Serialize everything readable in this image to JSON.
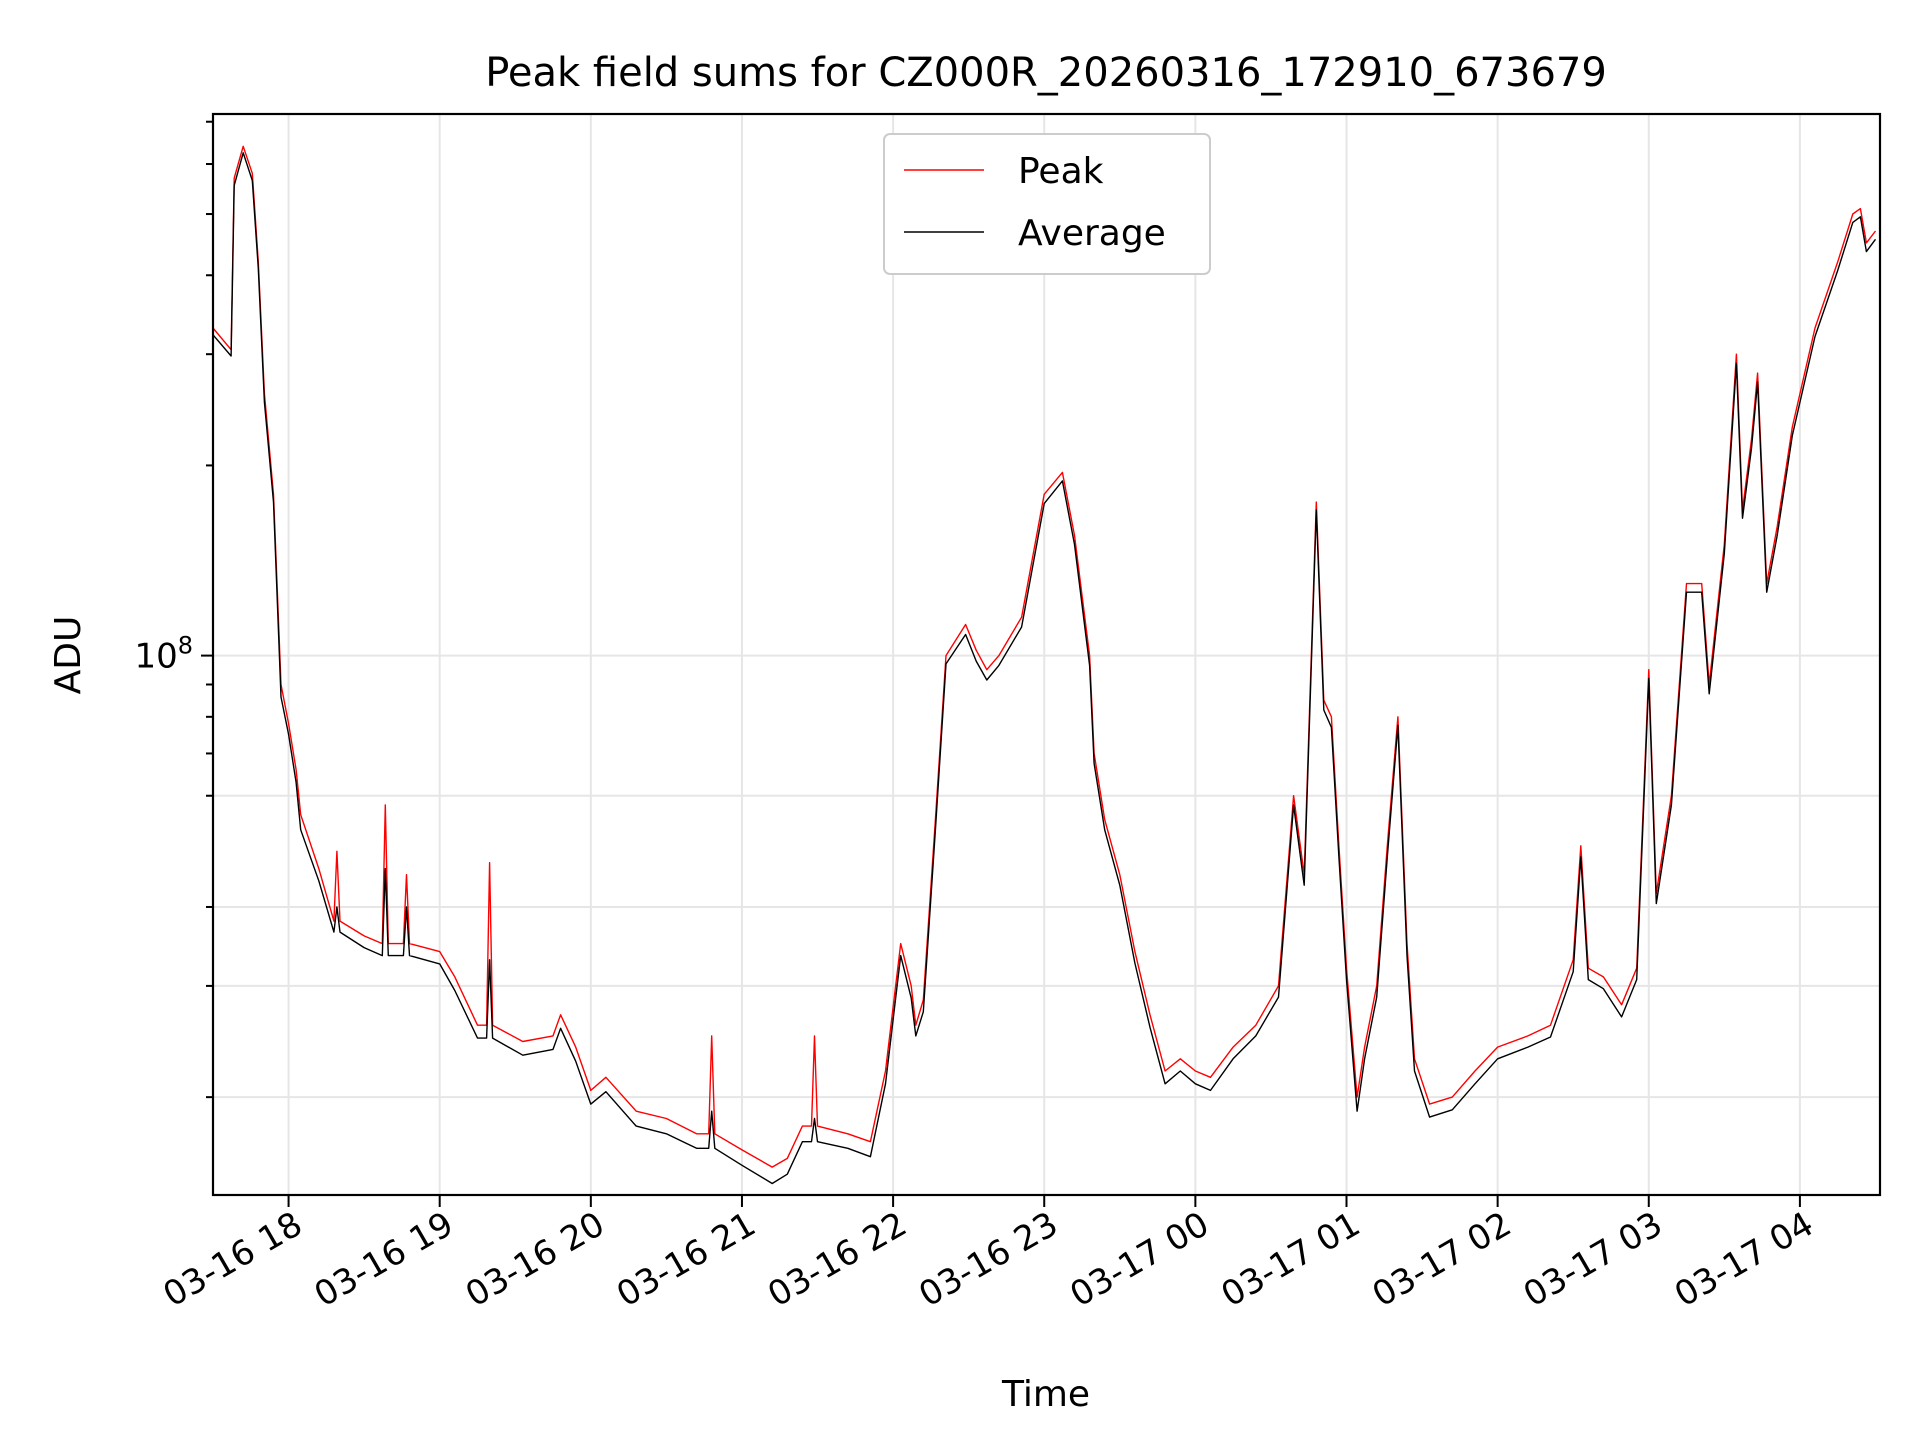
{
  "chart_data": {
    "type": "line",
    "title": "Peak field sums for CZ000R_20260316_172910_673679",
    "xlabel": "Time",
    "ylabel": "ADU",
    "yscale": "log",
    "ylim": [
      14000000,
      720000000
    ],
    "xlim_hours": [
      17.5,
      28.53
    ],
    "x_ticks": [
      {
        "hour": 18,
        "label": "03-16 18"
      },
      {
        "hour": 19,
        "label": "03-16 19"
      },
      {
        "hour": 20,
        "label": "03-16 20"
      },
      {
        "hour": 21,
        "label": "03-16 21"
      },
      {
        "hour": 22,
        "label": "03-16 22"
      },
      {
        "hour": 23,
        "label": "03-16 23"
      },
      {
        "hour": 24,
        "label": "03-17 00"
      },
      {
        "hour": 25,
        "label": "03-17 01"
      },
      {
        "hour": 26,
        "label": "03-17 02"
      },
      {
        "hour": 27,
        "label": "03-17 03"
      },
      {
        "hour": 28,
        "label": "03-17 04"
      }
    ],
    "y_major_ticks": [
      {
        "value": 100000000,
        "base": "10",
        "exp": "8"
      }
    ],
    "y_minor_ticks": [
      20000000,
      30000000,
      40000000,
      60000000,
      70000000,
      80000000,
      90000000,
      200000000,
      300000000,
      400000000,
      500000000,
      600000000,
      700000000
    ],
    "y_minor_grid": [
      20000000,
      30000000,
      40000000,
      60000000
    ],
    "grid": true,
    "legend": {
      "location": "upper-center",
      "entries": [
        "Peak",
        "Average"
      ]
    },
    "series": [
      {
        "name": "Peak",
        "color": "#ff0000",
        "points": [
          [
            17.5,
            330000000
          ],
          [
            17.62,
            305000000
          ],
          [
            17.64,
            570000000
          ],
          [
            17.7,
            640000000
          ],
          [
            17.76,
            580000000
          ],
          [
            17.8,
            420000000
          ],
          [
            17.84,
            260000000
          ],
          [
            17.9,
            180000000
          ],
          [
            17.95,
            90000000
          ],
          [
            18.0,
            78000000
          ],
          [
            18.05,
            66000000
          ],
          [
            18.08,
            56000000
          ],
          [
            18.2,
            46000000
          ],
          [
            18.3,
            38000000
          ],
          [
            18.32,
            49000000
          ],
          [
            18.34,
            38000000
          ],
          [
            18.5,
            36000000
          ],
          [
            18.62,
            35000000
          ],
          [
            18.64,
            58000000
          ],
          [
            18.66,
            35000000
          ],
          [
            18.76,
            35000000
          ],
          [
            18.78,
            45000000
          ],
          [
            18.8,
            35000000
          ],
          [
            19.0,
            34000000
          ],
          [
            19.1,
            31000000
          ],
          [
            19.25,
            26000000
          ],
          [
            19.31,
            26000000
          ],
          [
            19.33,
            47000000
          ],
          [
            19.35,
            26000000
          ],
          [
            19.55,
            24500000
          ],
          [
            19.75,
            25000000
          ],
          [
            19.8,
            27000000
          ],
          [
            19.9,
            24000000
          ],
          [
            20.0,
            20500000
          ],
          [
            20.1,
            21500000
          ],
          [
            20.3,
            19000000
          ],
          [
            20.5,
            18500000
          ],
          [
            20.7,
            17500000
          ],
          [
            20.78,
            17500000
          ],
          [
            20.8,
            25000000
          ],
          [
            20.82,
            17500000
          ],
          [
            21.0,
            16500000
          ],
          [
            21.2,
            15500000
          ],
          [
            21.3,
            16000000
          ],
          [
            21.4,
            18000000
          ],
          [
            21.46,
            18000000
          ],
          [
            21.48,
            25000000
          ],
          [
            21.5,
            18000000
          ],
          [
            21.7,
            17500000
          ],
          [
            21.85,
            17000000
          ],
          [
            21.95,
            22000000
          ],
          [
            22.05,
            35000000
          ],
          [
            22.12,
            30000000
          ],
          [
            22.15,
            26000000
          ],
          [
            22.2,
            28500000
          ],
          [
            22.28,
            55000000
          ],
          [
            22.35,
            100000000
          ],
          [
            22.48,
            112000000
          ],
          [
            22.55,
            102000000
          ],
          [
            22.62,
            95000000
          ],
          [
            22.7,
            100000000
          ],
          [
            22.85,
            115000000
          ],
          [
            23.0,
            180000000
          ],
          [
            23.12,
            195000000
          ],
          [
            23.2,
            155000000
          ],
          [
            23.3,
            100000000
          ],
          [
            23.33,
            70000000
          ],
          [
            23.4,
            55000000
          ],
          [
            23.5,
            45000000
          ],
          [
            23.6,
            34000000
          ],
          [
            23.7,
            27000000
          ],
          [
            23.8,
            22000000
          ],
          [
            23.9,
            23000000
          ],
          [
            24.0,
            22000000
          ],
          [
            24.1,
            21500000
          ],
          [
            24.25,
            24000000
          ],
          [
            24.4,
            26000000
          ],
          [
            24.55,
            30000000
          ],
          [
            24.65,
            60000000
          ],
          [
            24.72,
            45000000
          ],
          [
            24.8,
            175000000
          ],
          [
            24.85,
            85000000
          ],
          [
            24.9,
            80000000
          ],
          [
            24.95,
            50000000
          ],
          [
            25.0,
            32000000
          ],
          [
            25.07,
            20000000
          ],
          [
            25.12,
            24000000
          ],
          [
            25.2,
            30000000
          ],
          [
            25.27,
            50000000
          ],
          [
            25.34,
            80000000
          ],
          [
            25.4,
            35000000
          ],
          [
            25.45,
            23000000
          ],
          [
            25.55,
            19500000
          ],
          [
            25.7,
            20000000
          ],
          [
            25.85,
            22000000
          ],
          [
            26.0,
            24000000
          ],
          [
            26.2,
            25000000
          ],
          [
            26.35,
            26000000
          ],
          [
            26.5,
            33000000
          ],
          [
            26.55,
            50000000
          ],
          [
            26.6,
            32000000
          ],
          [
            26.7,
            31000000
          ],
          [
            26.82,
            28000000
          ],
          [
            26.92,
            32000000
          ],
          [
            27.0,
            95000000
          ],
          [
            27.05,
            42000000
          ],
          [
            27.15,
            60000000
          ],
          [
            27.25,
            130000000
          ],
          [
            27.35,
            130000000
          ],
          [
            27.4,
            90000000
          ],
          [
            27.5,
            150000000
          ],
          [
            27.58,
            300000000
          ],
          [
            27.62,
            170000000
          ],
          [
            27.68,
            220000000
          ],
          [
            27.72,
            280000000
          ],
          [
            27.78,
            130000000
          ],
          [
            27.85,
            160000000
          ],
          [
            27.95,
            230000000
          ],
          [
            28.1,
            330000000
          ],
          [
            28.25,
            420000000
          ],
          [
            28.35,
            500000000
          ],
          [
            28.4,
            510000000
          ],
          [
            28.44,
            450000000
          ],
          [
            28.5,
            470000000
          ]
        ]
      },
      {
        "name": "Average",
        "color": "#000000",
        "points": [
          [
            17.5,
            322000000
          ],
          [
            17.62,
            298000000
          ],
          [
            17.64,
            555000000
          ],
          [
            17.7,
            625000000
          ],
          [
            17.76,
            565000000
          ],
          [
            17.8,
            410000000
          ],
          [
            17.84,
            252000000
          ],
          [
            17.9,
            175000000
          ],
          [
            17.95,
            86000000
          ],
          [
            18.0,
            75000000
          ],
          [
            18.05,
            63000000
          ],
          [
            18.08,
            53000000
          ],
          [
            18.2,
            44000000
          ],
          [
            18.3,
            36500000
          ],
          [
            18.32,
            40000000
          ],
          [
            18.34,
            36500000
          ],
          [
            18.5,
            34500000
          ],
          [
            18.62,
            33500000
          ],
          [
            18.64,
            46000000
          ],
          [
            18.66,
            33500000
          ],
          [
            18.76,
            33500000
          ],
          [
            18.78,
            40000000
          ],
          [
            18.8,
            33500000
          ],
          [
            19.0,
            32500000
          ],
          [
            19.1,
            29500000
          ],
          [
            19.25,
            24800000
          ],
          [
            19.31,
            24800000
          ],
          [
            19.33,
            33000000
          ],
          [
            19.35,
            24800000
          ],
          [
            19.55,
            23300000
          ],
          [
            19.75,
            23800000
          ],
          [
            19.8,
            25700000
          ],
          [
            19.9,
            22800000
          ],
          [
            20.0,
            19500000
          ],
          [
            20.1,
            20400000
          ],
          [
            20.3,
            18000000
          ],
          [
            20.5,
            17500000
          ],
          [
            20.7,
            16600000
          ],
          [
            20.78,
            16600000
          ],
          [
            20.8,
            19000000
          ],
          [
            20.82,
            16600000
          ],
          [
            21.0,
            15600000
          ],
          [
            21.2,
            14600000
          ],
          [
            21.3,
            15100000
          ],
          [
            21.4,
            17000000
          ],
          [
            21.46,
            17000000
          ],
          [
            21.48,
            18500000
          ],
          [
            21.5,
            17000000
          ],
          [
            21.7,
            16600000
          ],
          [
            21.85,
            16100000
          ],
          [
            21.95,
            21000000
          ],
          [
            22.05,
            33500000
          ],
          [
            22.12,
            28700000
          ],
          [
            22.15,
            25000000
          ],
          [
            22.2,
            27300000
          ],
          [
            22.28,
            53000000
          ],
          [
            22.35,
            97000000
          ],
          [
            22.48,
            108000000
          ],
          [
            22.55,
            98000000
          ],
          [
            22.62,
            91500000
          ],
          [
            22.7,
            96500000
          ],
          [
            22.85,
            111000000
          ],
          [
            23.0,
            174000000
          ],
          [
            23.12,
            189000000
          ],
          [
            23.2,
            150000000
          ],
          [
            23.3,
            96500000
          ],
          [
            23.33,
            67500000
          ],
          [
            23.4,
            53000000
          ],
          [
            23.5,
            43300000
          ],
          [
            23.6,
            32600000
          ],
          [
            23.7,
            25800000
          ],
          [
            23.8,
            21000000
          ],
          [
            23.9,
            22000000
          ],
          [
            24.0,
            21000000
          ],
          [
            24.1,
            20500000
          ],
          [
            24.25,
            23000000
          ],
          [
            24.4,
            25000000
          ],
          [
            24.55,
            28800000
          ],
          [
            24.65,
            58000000
          ],
          [
            24.72,
            43300000
          ],
          [
            24.8,
            170000000
          ],
          [
            24.85,
            82000000
          ],
          [
            24.9,
            77000000
          ],
          [
            24.95,
            48000000
          ],
          [
            25.0,
            30700000
          ],
          [
            25.07,
            19000000
          ],
          [
            25.12,
            23000000
          ],
          [
            25.2,
            28800000
          ],
          [
            25.27,
            48000000
          ],
          [
            25.34,
            77500000
          ],
          [
            25.4,
            33500000
          ],
          [
            25.45,
            22000000
          ],
          [
            25.55,
            18600000
          ],
          [
            25.7,
            19100000
          ],
          [
            25.85,
            21000000
          ],
          [
            26.0,
            23000000
          ],
          [
            26.2,
            24000000
          ],
          [
            26.35,
            24900000
          ],
          [
            26.5,
            31600000
          ],
          [
            26.55,
            48000000
          ],
          [
            26.6,
            30700000
          ],
          [
            26.7,
            29700000
          ],
          [
            26.82,
            26800000
          ],
          [
            26.92,
            30700000
          ],
          [
            27.0,
            92000000
          ],
          [
            27.05,
            40500000
          ],
          [
            27.15,
            58000000
          ],
          [
            27.25,
            126000000
          ],
          [
            27.35,
            126000000
          ],
          [
            27.4,
            87000000
          ],
          [
            27.5,
            145000000
          ],
          [
            27.58,
            290000000
          ],
          [
            27.62,
            165000000
          ],
          [
            27.68,
            213000000
          ],
          [
            27.72,
            271000000
          ],
          [
            27.78,
            126000000
          ],
          [
            27.85,
            155000000
          ],
          [
            27.95,
            223000000
          ],
          [
            28.1,
            320000000
          ],
          [
            28.25,
            407000000
          ],
          [
            28.35,
            485000000
          ],
          [
            28.4,
            495000000
          ],
          [
            28.44,
            436000000
          ],
          [
            28.5,
            456000000
          ]
        ]
      }
    ]
  }
}
